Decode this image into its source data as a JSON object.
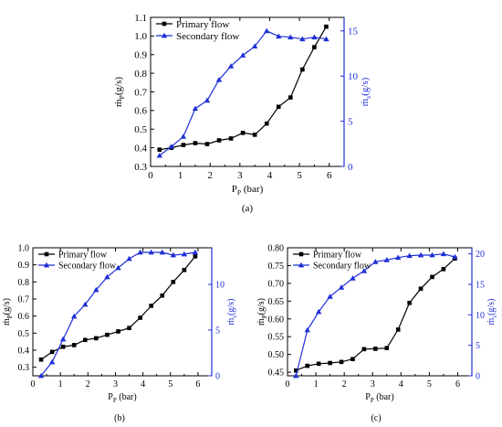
{
  "chart_data": [
    {
      "type": "line",
      "panel_label": "(a)",
      "xlabel": "P",
      "xlabel_sub": "P",
      "xlabel_unit": " (bar)",
      "ylabel_left": "ṁ",
      "ylabel_left_sub": "P",
      "ylabel_left_unit": "(g/s)",
      "ylabel_right": "ṁ",
      "ylabel_right_sub": "s",
      "ylabel_right_unit": "(g/s)",
      "xlim": [
        0,
        6.5
      ],
      "ylim_left": [
        0.3,
        1.1
      ],
      "ylim_right": [
        0,
        16.5
      ],
      "xticks": [
        0,
        1,
        2,
        3,
        4,
        5,
        6
      ],
      "yticks_left": [
        0.3,
        0.4,
        0.5,
        0.6,
        0.7,
        0.8,
        0.9,
        1.0,
        1.1
      ],
      "yticks_left_labels": [
        "0.3",
        "0.4",
        "0.5",
        "0.6",
        "0.7",
        "0.8",
        "0.9",
        "1.0",
        "1.1"
      ],
      "yticks_right": [
        0,
        5,
        10,
        15
      ],
      "legend_position": "top-left",
      "series": [
        {
          "name": "Primary flow",
          "axis": "left",
          "color": "#000000",
          "marker": "square",
          "x": [
            0.3,
            0.7,
            1.1,
            1.5,
            1.9,
            2.3,
            2.7,
            3.1,
            3.5,
            3.9,
            4.3,
            4.7,
            5.1,
            5.5,
            5.9
          ],
          "y": [
            0.39,
            0.4,
            0.415,
            0.425,
            0.42,
            0.44,
            0.45,
            0.48,
            0.47,
            0.53,
            0.62,
            0.67,
            0.82,
            0.94,
            1.05
          ]
        },
        {
          "name": "Secondary flow",
          "axis": "right",
          "color": "#1f2fd6",
          "marker": "triangle",
          "x": [
            0.3,
            0.7,
            1.1,
            1.5,
            1.9,
            2.3,
            2.7,
            3.1,
            3.5,
            3.9,
            4.3,
            4.7,
            5.1,
            5.5,
            5.9
          ],
          "y": [
            1.2,
            2.2,
            3.3,
            6.4,
            7.3,
            9.6,
            11.1,
            12.3,
            13.3,
            15.0,
            14.4,
            14.3,
            14.1,
            14.3,
            14.1
          ]
        }
      ]
    },
    {
      "type": "line",
      "panel_label": "(b)",
      "xlabel": "P",
      "xlabel_sub": "P",
      "xlabel_unit": " (bar)",
      "ylabel_left": "ṁ",
      "ylabel_left_sub": "P",
      "ylabel_left_unit": "(g/s)",
      "ylabel_right": "ṁ",
      "ylabel_right_sub": "s",
      "ylabel_right_unit": "(g/s)",
      "xlim": [
        0,
        6.5
      ],
      "ylim_left": [
        0.25,
        1.0
      ],
      "ylim_right": [
        0,
        14
      ],
      "xticks": [
        0,
        1,
        2,
        3,
        4,
        5,
        6
      ],
      "yticks_left": [
        0.3,
        0.4,
        0.5,
        0.6,
        0.7,
        0.8,
        0.9,
        1.0
      ],
      "yticks_left_labels": [
        "0.3",
        "0.4",
        "0.5",
        "0.6",
        "0.7",
        "0.8",
        "0.9",
        "1.0"
      ],
      "yticks_right": [
        0,
        5,
        10
      ],
      "legend_position": "top-left",
      "series": [
        {
          "name": "Primary flow",
          "axis": "left",
          "color": "#000000",
          "marker": "square",
          "x": [
            0.3,
            0.7,
            1.1,
            1.5,
            1.9,
            2.3,
            2.7,
            3.1,
            3.5,
            3.9,
            4.3,
            4.7,
            5.1,
            5.5,
            5.9
          ],
          "y": [
            0.345,
            0.39,
            0.42,
            0.43,
            0.46,
            0.47,
            0.49,
            0.51,
            0.53,
            0.59,
            0.66,
            0.72,
            0.8,
            0.87,
            0.95
          ]
        },
        {
          "name": "Secondary flow",
          "axis": "right",
          "color": "#1f2fd6",
          "marker": "triangle",
          "x": [
            0.3,
            0.7,
            1.1,
            1.5,
            1.9,
            2.3,
            2.7,
            3.1,
            3.5,
            3.9,
            4.3,
            4.7,
            5.1,
            5.5,
            5.9
          ],
          "y": [
            0,
            1.5,
            4.0,
            6.5,
            7.8,
            9.4,
            10.8,
            11.8,
            12.8,
            13.5,
            13.5,
            13.5,
            13.2,
            13.3,
            13.5
          ]
        }
      ]
    },
    {
      "type": "line",
      "panel_label": "(c)",
      "xlabel": "P",
      "xlabel_sub": "P",
      "xlabel_unit": " (bar)",
      "ylabel_left": "ṁ",
      "ylabel_left_sub": "P",
      "ylabel_left_unit": "(g/s)",
      "ylabel_right": "ṁ",
      "ylabel_right_sub": "s",
      "ylabel_right_unit": "(g/s)",
      "xlim": [
        0,
        6.5
      ],
      "ylim_left": [
        0.44,
        0.8
      ],
      "ylim_right": [
        0,
        21
      ],
      "xticks": [
        0,
        1,
        2,
        3,
        4,
        5,
        6
      ],
      "yticks_left": [
        0.45,
        0.5,
        0.55,
        0.6,
        0.65,
        0.7,
        0.75,
        0.8
      ],
      "yticks_left_labels": [
        "0.45",
        "0.50",
        "0.55",
        "0.60",
        "0.65",
        "0.70",
        "0.75",
        "0.80"
      ],
      "yticks_right": [
        0,
        5,
        10,
        15,
        20
      ],
      "legend_position": "top-left",
      "series": [
        {
          "name": "Primary flow",
          "axis": "left",
          "color": "#000000",
          "marker": "square",
          "x": [
            0.3,
            0.7,
            1.1,
            1.5,
            1.9,
            2.3,
            2.7,
            3.1,
            3.5,
            3.9,
            4.3,
            4.7,
            5.1,
            5.5,
            5.9
          ],
          "y": [
            0.455,
            0.468,
            0.474,
            0.476,
            0.479,
            0.487,
            0.515,
            0.516,
            0.518,
            0.57,
            0.645,
            0.685,
            0.718,
            0.74,
            0.77
          ]
        },
        {
          "name": "Secondary flow",
          "axis": "right",
          "color": "#1f2fd6",
          "marker": "triangle",
          "x": [
            0.3,
            0.7,
            1.1,
            1.5,
            1.9,
            2.3,
            2.7,
            3.1,
            3.5,
            3.9,
            4.3,
            4.7,
            5.1,
            5.5,
            5.9
          ],
          "y": [
            0,
            7.5,
            10.5,
            13.0,
            14.5,
            16.0,
            17.2,
            18.7,
            19.0,
            19.4,
            19.7,
            19.8,
            19.8,
            20.0,
            19.5
          ]
        }
      ]
    }
  ]
}
